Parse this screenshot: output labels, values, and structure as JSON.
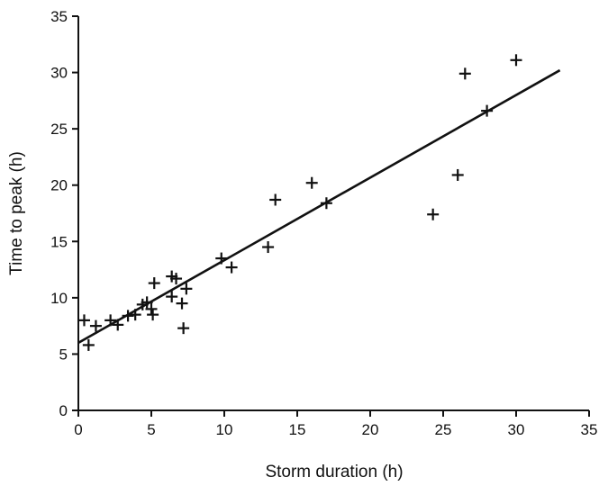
{
  "chart_data": {
    "type": "scatter",
    "title": "",
    "xlabel": "Storm duration (h)",
    "ylabel": "Time to peak (h)",
    "xlim": [
      0,
      35
    ],
    "ylim": [
      0,
      35
    ],
    "xticks": [
      0,
      5,
      10,
      15,
      20,
      25,
      30,
      35
    ],
    "yticks": [
      0,
      5,
      10,
      15,
      20,
      25,
      30,
      35
    ],
    "grid": false,
    "legend": "none",
    "series": [
      {
        "points": [
          [
            0.4,
            8.0
          ],
          [
            0.7,
            5.8
          ],
          [
            1.2,
            7.5
          ],
          [
            2.2,
            8.0
          ],
          [
            2.7,
            7.6
          ],
          [
            3.4,
            8.4
          ],
          [
            3.9,
            8.5
          ],
          [
            4.4,
            9.4
          ],
          [
            4.7,
            9.6
          ],
          [
            5.0,
            9.0
          ],
          [
            5.1,
            8.5
          ],
          [
            5.2,
            11.3
          ],
          [
            6.4,
            10.1
          ],
          [
            6.4,
            11.9
          ],
          [
            6.7,
            11.7
          ],
          [
            7.1,
            9.5
          ],
          [
            7.2,
            7.3
          ],
          [
            7.4,
            10.8
          ],
          [
            9.8,
            13.5
          ],
          [
            10.5,
            12.7
          ],
          [
            13.0,
            14.5
          ],
          [
            13.5,
            18.7
          ],
          [
            16.0,
            20.2
          ],
          [
            17.0,
            18.4
          ],
          [
            24.3,
            17.4
          ],
          [
            26.0,
            20.9
          ],
          [
            26.5,
            29.9
          ],
          [
            28.0,
            26.6
          ],
          [
            30.0,
            31.1
          ]
        ]
      }
    ],
    "fit_line": {
      "x": [
        0,
        33
      ],
      "y": [
        6.0,
        30.2
      ]
    }
  }
}
